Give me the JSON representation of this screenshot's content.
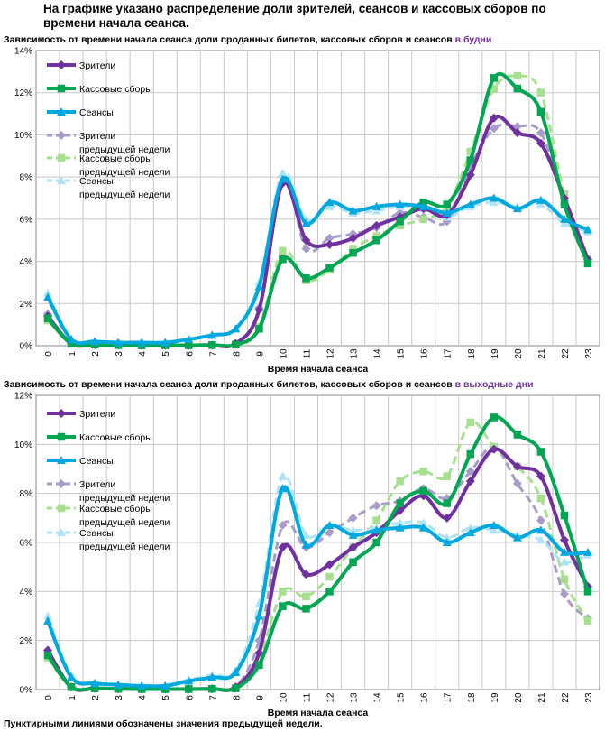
{
  "main_title": "На графике указано распределение доли зрителей, сеансов и кассовых сборов по времени начала сеанса.",
  "footnote": "Пунктирными линиями обозначены значения предыдущей недели.",
  "colors": {
    "viewers": "#7030a0",
    "box_office": "#00a651",
    "sessions": "#00a8e0",
    "viewers_prev": "#a99bc9",
    "box_office_prev": "#a6e08e",
    "sessions_prev": "#aee3f7",
    "accent_text": "#7030a0"
  },
  "chart_data": [
    {
      "type": "line",
      "title": "Зависимость от времени начала сеанса доли проданных билетов, кассовых сборов и сеансов",
      "title_accent": "в будни",
      "xlabel": "Время начала сеанса",
      "ylabel": "",
      "ylim": [
        0,
        14
      ],
      "yticks": [
        "0%",
        "2%",
        "4%",
        "6%",
        "8%",
        "10%",
        "12%",
        "14%"
      ],
      "categories": [
        "0",
        "1",
        "2",
        "3",
        "4",
        "5",
        "6",
        "7",
        "8",
        "9",
        "10",
        "11",
        "12",
        "13",
        "14",
        "15",
        "16",
        "17",
        "18",
        "19",
        "20",
        "21",
        "22",
        "23"
      ],
      "grid": true,
      "legend_position": "top-left",
      "series": [
        {
          "name": "Зрители",
          "style": "solid",
          "marker": "diamond",
          "color_key": "viewers",
          "values": [
            1.4,
            0.1,
            0.05,
            0.03,
            0.02,
            0.02,
            0.02,
            0.03,
            0.1,
            1.7,
            7.7,
            5.0,
            4.8,
            5.1,
            5.7,
            6.1,
            6.5,
            6.2,
            8.1,
            10.8,
            10.1,
            9.6,
            7.0,
            4.1
          ]
        },
        {
          "name": "Кассовые сборы",
          "style": "solid",
          "marker": "square",
          "color_key": "box_office",
          "values": [
            1.3,
            0.1,
            0.05,
            0.03,
            0.02,
            0.02,
            0.02,
            0.03,
            0.05,
            0.8,
            4.1,
            3.2,
            3.7,
            4.4,
            5.0,
            5.9,
            6.8,
            6.7,
            8.8,
            12.7,
            12.2,
            11.1,
            6.7,
            3.9
          ]
        },
        {
          "name": "Сеансы",
          "style": "solid",
          "marker": "triangle",
          "color_key": "sessions",
          "values": [
            2.3,
            0.3,
            0.2,
            0.15,
            0.15,
            0.15,
            0.3,
            0.5,
            0.8,
            2.8,
            7.9,
            5.8,
            6.8,
            6.4,
            6.6,
            6.7,
            6.6,
            6.3,
            6.7,
            7.0,
            6.5,
            6.9,
            6.0,
            5.5
          ]
        },
        {
          "name": "Зрители предыдущей недели",
          "style": "dashed",
          "marker": "diamond",
          "color_key": "viewers_prev",
          "values": [
            1.5,
            0.1,
            0.05,
            0.03,
            0.02,
            0.02,
            0.02,
            0.03,
            0.1,
            1.8,
            8.0,
            4.6,
            5.1,
            5.3,
            5.6,
            6.3,
            6.1,
            5.9,
            8.5,
            10.3,
            10.4,
            10.1,
            6.9,
            4.1
          ]
        },
        {
          "name": "Кассовые сборы предыдущей недели",
          "style": "dashed",
          "marker": "square",
          "color_key": "box_office_prev",
          "values": [
            1.2,
            0.1,
            0.05,
            0.03,
            0.02,
            0.02,
            0.02,
            0.03,
            0.05,
            0.9,
            4.5,
            3.1,
            3.6,
            4.6,
            5.2,
            5.7,
            6.0,
            6.6,
            9.2,
            12.2,
            12.8,
            12.0,
            7.2,
            4.1
          ]
        },
        {
          "name": "Сеансы предыдущей недели",
          "style": "dashed",
          "marker": "triangle",
          "color_key": "sessions_prev",
          "values": [
            2.5,
            0.3,
            0.2,
            0.15,
            0.15,
            0.15,
            0.3,
            0.5,
            0.8,
            3.0,
            8.2,
            6.0,
            6.6,
            6.3,
            6.4,
            6.6,
            6.5,
            6.1,
            6.6,
            6.8,
            6.6,
            6.7,
            5.8,
            5.4
          ]
        }
      ]
    },
    {
      "type": "line",
      "title": "Зависимость от времени начала сеанса доли проданных билетов, кассовых сборов и сеансов",
      "title_accent": "в выходные дни",
      "xlabel": "Время начала сеанса",
      "ylabel": "",
      "ylim": [
        0,
        12
      ],
      "yticks": [
        "0%",
        "2%",
        "4%",
        "6%",
        "8%",
        "10%",
        "12%"
      ],
      "categories": [
        "0",
        "1",
        "2",
        "3",
        "4",
        "5",
        "6",
        "7",
        "8",
        "9",
        "10",
        "11",
        "12",
        "13",
        "14",
        "15",
        "16",
        "17",
        "18",
        "19",
        "20",
        "21",
        "22",
        "23"
      ],
      "grid": true,
      "legend_position": "top-left",
      "series": [
        {
          "name": "Зрители",
          "style": "solid",
          "marker": "diamond",
          "color_key": "viewers",
          "values": [
            1.6,
            0.1,
            0.05,
            0.03,
            0.02,
            0.02,
            0.02,
            0.03,
            0.1,
            1.5,
            5.8,
            4.7,
            5.1,
            5.8,
            6.4,
            7.3,
            7.9,
            7.0,
            8.5,
            9.8,
            9.1,
            8.7,
            6.1,
            4.2
          ]
        },
        {
          "name": "Кассовые сборы",
          "style": "solid",
          "marker": "square",
          "color_key": "box_office",
          "values": [
            1.4,
            0.1,
            0.05,
            0.03,
            0.02,
            0.02,
            0.02,
            0.03,
            0.05,
            1.0,
            3.4,
            3.3,
            4.0,
            5.2,
            6.0,
            7.6,
            8.1,
            7.6,
            9.6,
            11.1,
            10.4,
            9.7,
            7.1,
            4.0
          ]
        },
        {
          "name": "Сеансы",
          "style": "solid",
          "marker": "triangle",
          "color_key": "sessions",
          "values": [
            2.8,
            0.5,
            0.25,
            0.2,
            0.15,
            0.15,
            0.35,
            0.5,
            0.7,
            3.0,
            8.2,
            5.9,
            6.7,
            6.3,
            6.5,
            6.6,
            6.6,
            6.0,
            6.4,
            6.7,
            6.2,
            6.5,
            5.6,
            5.6
          ]
        },
        {
          "name": "Зрители предыдущей недели",
          "style": "dashed",
          "marker": "diamond",
          "color_key": "viewers_prev",
          "values": [
            1.5,
            0.1,
            0.05,
            0.03,
            0.02,
            0.02,
            0.02,
            0.03,
            0.1,
            2.0,
            6.7,
            5.8,
            6.4,
            7.0,
            7.5,
            7.7,
            8.2,
            7.8,
            8.9,
            9.9,
            8.4,
            6.9,
            3.9,
            2.9
          ]
        },
        {
          "name": "Кассовые сборы предыдущей недели",
          "style": "dashed",
          "marker": "square",
          "color_key": "box_office_prev",
          "values": [
            1.3,
            0.1,
            0.05,
            0.03,
            0.02,
            0.02,
            0.02,
            0.03,
            0.05,
            1.3,
            4.0,
            3.8,
            4.6,
            5.8,
            6.9,
            8.5,
            8.9,
            8.7,
            10.9,
            9.9,
            9.1,
            7.8,
            4.5,
            2.8
          ]
        },
        {
          "name": "Сеансы предыдущей недели",
          "style": "dashed",
          "marker": "triangle",
          "color_key": "sessions_prev",
          "values": [
            3.0,
            0.6,
            0.3,
            0.2,
            0.15,
            0.15,
            0.4,
            0.6,
            0.8,
            3.5,
            8.7,
            6.3,
            6.7,
            6.5,
            6.6,
            6.8,
            6.8,
            6.2,
            6.6,
            6.5,
            6.3,
            6.1,
            5.2,
            5.5
          ]
        }
      ]
    }
  ]
}
